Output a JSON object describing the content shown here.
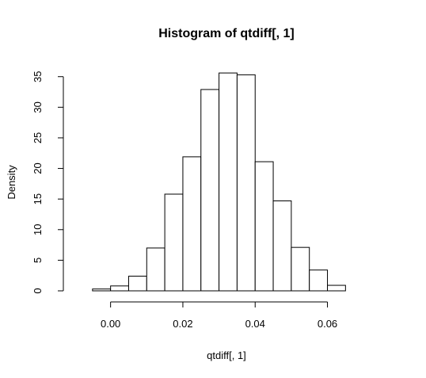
{
  "chart_data": {
    "type": "bar",
    "title": "Histogram of qtdiff[, 1]",
    "xlabel": "qtdiff[, 1]",
    "ylabel": "Density",
    "xlim": [
      -0.01,
      0.075
    ],
    "ylim": [
      0,
      36
    ],
    "bin_edges": [
      -0.005,
      0.0,
      0.005,
      0.01,
      0.015,
      0.02,
      0.025,
      0.03,
      0.035,
      0.04,
      0.045,
      0.05,
      0.055,
      0.06,
      0.065
    ],
    "values": [
      0.3,
      0.8,
      2.4,
      7.0,
      15.8,
      21.9,
      32.9,
      35.6,
      35.3,
      21.1,
      14.7,
      7.1,
      3.4,
      0.9
    ],
    "x_ticks": [
      0.0,
      0.02,
      0.04,
      0.06
    ],
    "x_tick_labels": [
      "0.00",
      "0.02",
      "0.04",
      "0.06"
    ],
    "y_ticks": [
      0,
      5,
      10,
      15,
      20,
      25,
      30,
      35
    ],
    "y_tick_labels": [
      "0",
      "5",
      "10",
      "15",
      "20",
      "25",
      "30",
      "35"
    ],
    "bar_fill": "#ffffff",
    "bar_stroke": "#000000",
    "grid": false,
    "legend": "none"
  }
}
